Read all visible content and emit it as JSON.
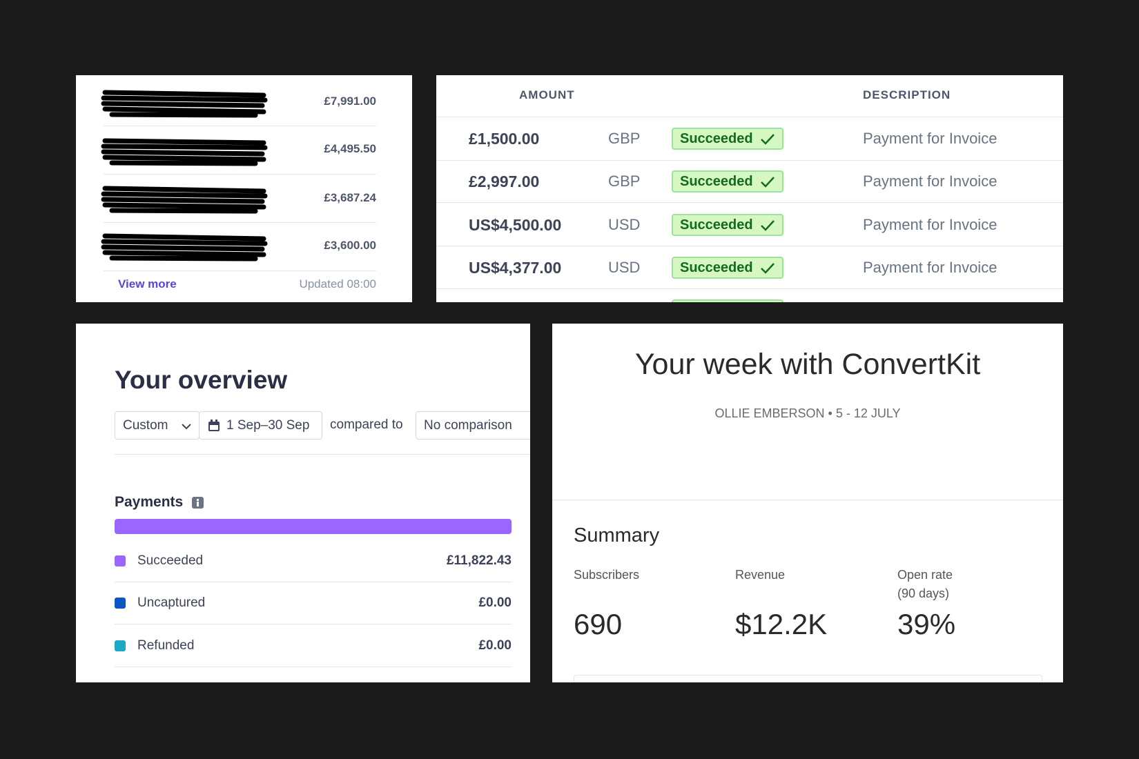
{
  "top_customers": {
    "amounts": [
      "£7,991.00",
      "£4,495.50",
      "£3,687.24",
      "£3,600.00"
    ],
    "view_more": "View more",
    "updated": "Updated 08:00"
  },
  "payments_table": {
    "headers": [
      "AMOUNT",
      "DESCRIPTION"
    ],
    "rows": [
      {
        "amount": "£1,500.00",
        "currency": "GBP",
        "status": "Succeeded",
        "description": "Payment for Invoice"
      },
      {
        "amount": "£2,997.00",
        "currency": "GBP",
        "status": "Succeeded",
        "description": "Payment for Invoice"
      },
      {
        "amount": "US$4,500.00",
        "currency": "USD",
        "status": "Succeeded",
        "description": "Payment for Invoice"
      },
      {
        "amount": "US$4,377.00",
        "currency": "USD",
        "status": "Succeeded",
        "description": "Payment for Invoice"
      }
    ]
  },
  "overview": {
    "title": "Your overview",
    "range_select": "Custom",
    "date_range": "1 Sep–30 Sep",
    "compared_to": "compared to",
    "comparison": "No comparison",
    "section": "Payments",
    "rows": [
      {
        "label": "Succeeded",
        "amount": "£11,822.43"
      },
      {
        "label": "Uncaptured",
        "amount": "£0.00"
      },
      {
        "label": "Refunded",
        "amount": "£0.00"
      }
    ]
  },
  "weekly": {
    "title": "Your week with ConvertKit",
    "subtitle": "OLLIE EMBERSON • 5 - 12 JULY",
    "summary": "Summary",
    "stats": [
      {
        "label": "Subscribers",
        "value": "690"
      },
      {
        "label": "Revenue",
        "value": "$12.2K"
      },
      {
        "label": "Open rate",
        "note": "(90 days)",
        "value": "39%"
      }
    ]
  }
}
